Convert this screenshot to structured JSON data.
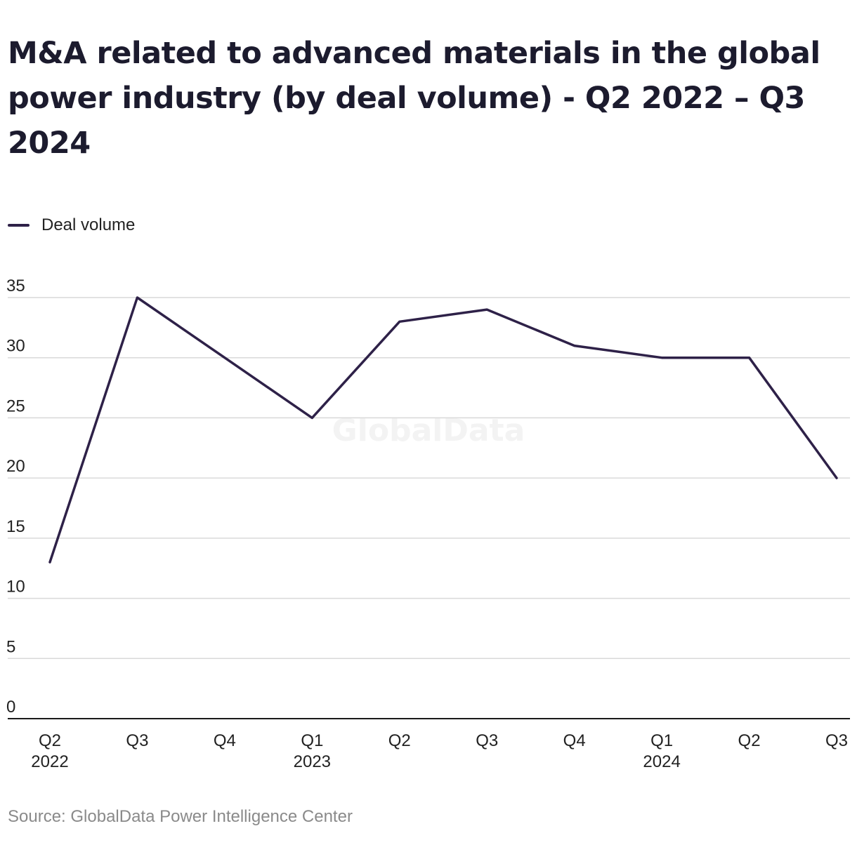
{
  "legend": {
    "label": "Deal volume"
  },
  "source": "Source: GlobalData Power Intelligence Center",
  "watermark": "GlobalData",
  "colors": {
    "line": "#2e2148",
    "grid": "#d9d9d9",
    "axis": "#1a1a1a"
  },
  "chart_data": {
    "type": "line",
    "title": "M&A related to advanced materials in the global power industry (by deal volume) - Q2 2022 – Q3 2024",
    "categories": [
      "Q2 2022",
      "Q3",
      "Q4",
      "Q1 2023",
      "Q2",
      "Q3",
      "Q4",
      "Q1 2024",
      "Q2",
      "Q3"
    ],
    "x_tick_labels": [
      [
        "Q2",
        "2022"
      ],
      [
        "Q3",
        ""
      ],
      [
        "Q4",
        ""
      ],
      [
        "Q1",
        "2023"
      ],
      [
        "Q2",
        ""
      ],
      [
        "Q3",
        ""
      ],
      [
        "Q4",
        ""
      ],
      [
        "Q1",
        "2024"
      ],
      [
        "Q2",
        ""
      ],
      [
        "Q3",
        ""
      ]
    ],
    "series": [
      {
        "name": "Deal volume",
        "values": [
          13,
          35,
          30,
          25,
          33,
          34,
          31,
          30,
          30,
          20
        ]
      }
    ],
    "ylim": [
      0,
      35
    ],
    "yticks": [
      0,
      5,
      10,
      15,
      20,
      25,
      30,
      35
    ],
    "grid": true,
    "legend_position": "top-left"
  }
}
